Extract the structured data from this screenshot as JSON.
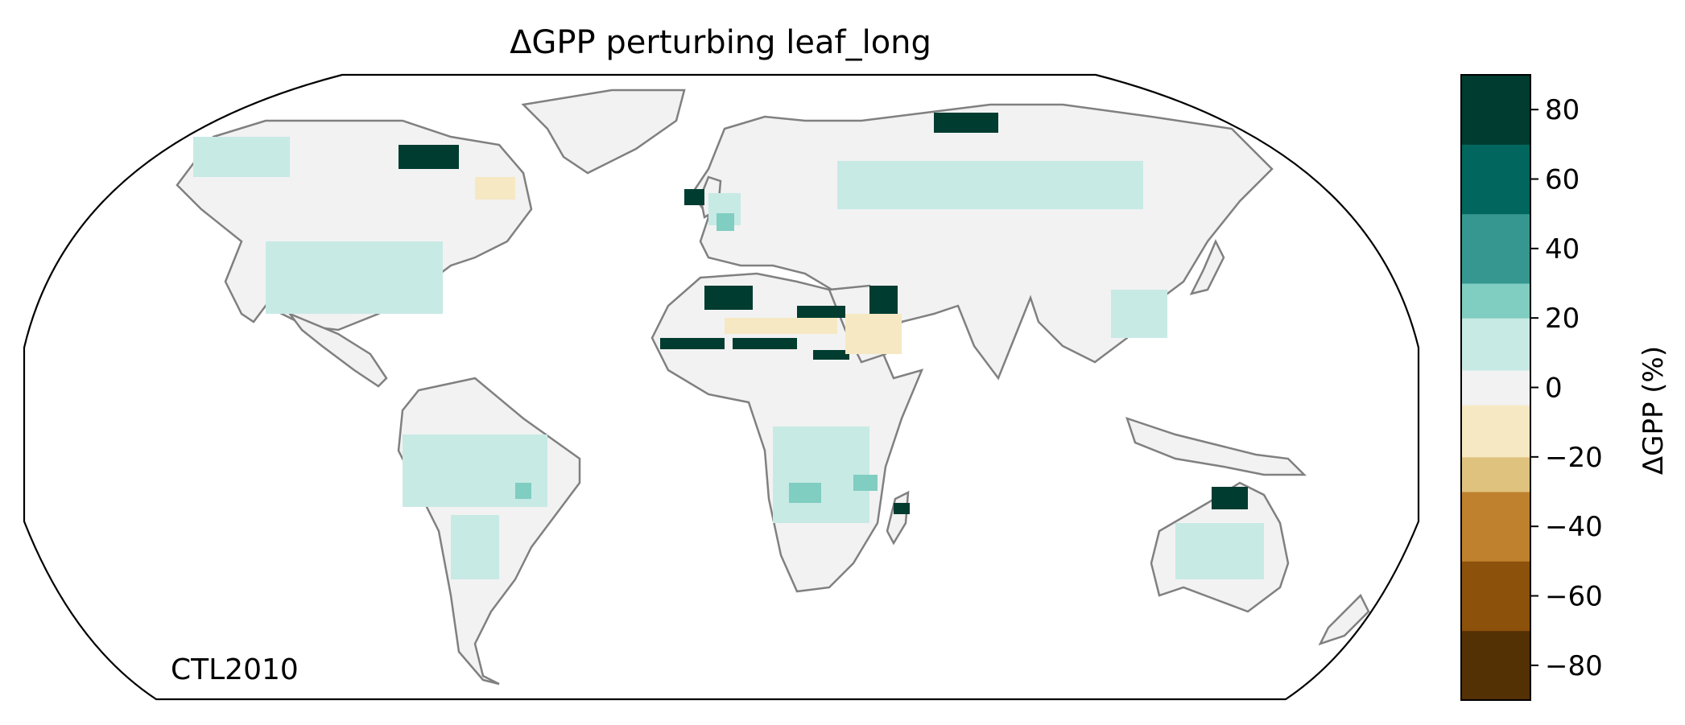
{
  "chart_data": {
    "type": "map",
    "title": "ΔGPP perturbing leaf_long",
    "annotation": "CTL2010",
    "projection": "Robinson",
    "colorbar": {
      "label": "ΔGPP (%)",
      "ticks": [
        80,
        60,
        40,
        20,
        0,
        -20,
        -40,
        -60,
        -80
      ],
      "tick_labels": [
        "80",
        "60",
        "40",
        "20",
        "0",
        "−20",
        "−40",
        "−60",
        "−80"
      ],
      "bins": [
        {
          "range": [
            -90,
            -70
          ],
          "color": "#543005"
        },
        {
          "range": [
            -70,
            -50
          ],
          "color": "#8c510a"
        },
        {
          "range": [
            -50,
            -30
          ],
          "color": "#bf812d"
        },
        {
          "range": [
            -30,
            -20
          ],
          "color": "#dfc27d"
        },
        {
          "range": [
            -20,
            -5
          ],
          "color": "#f6e8c3"
        },
        {
          "range": [
            -5,
            5
          ],
          "color": "#f2f2f2"
        },
        {
          "range": [
            5,
            20
          ],
          "color": "#c7eae5"
        },
        {
          "range": [
            20,
            30
          ],
          "color": "#80cdc1"
        },
        {
          "range": [
            30,
            50
          ],
          "color": "#35978f"
        },
        {
          "range": [
            50,
            70
          ],
          "color": "#01665e"
        },
        {
          "range": [
            70,
            90
          ],
          "color": "#003c30"
        }
      ]
    }
  }
}
